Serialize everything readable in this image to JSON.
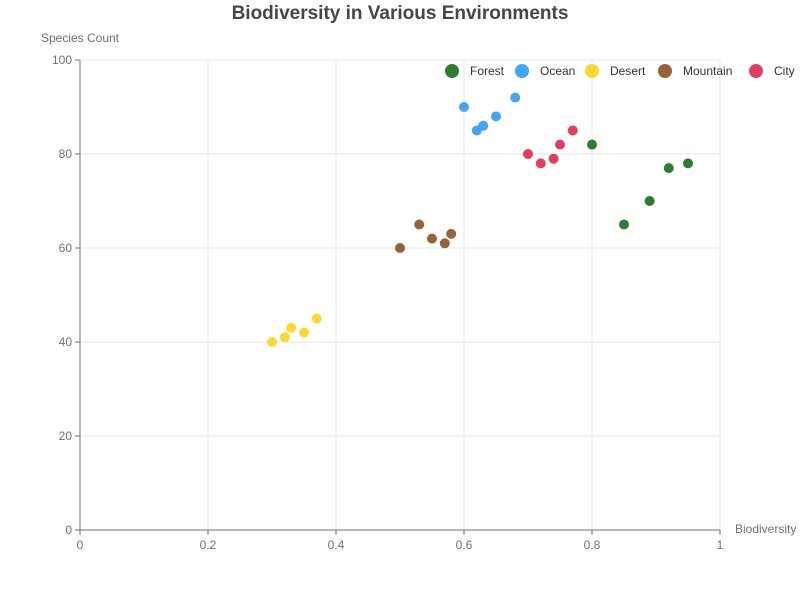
{
  "chart_data": {
    "type": "scatter",
    "title": "Biodiversity in Various Environments",
    "xlabel": "Biodiversity",
    "ylabel": "Species Count",
    "xlim": [
      0,
      1
    ],
    "ylim": [
      0,
      100
    ],
    "x_ticks": [
      0,
      0.2,
      0.4,
      0.6,
      0.8,
      1
    ],
    "y_ticks": [
      0,
      20,
      40,
      60,
      80,
      100
    ],
    "grid": true,
    "legend_position": "top-right",
    "series": [
      {
        "name": "Forest",
        "color": "#2f7d32",
        "points": [
          [
            0.8,
            82
          ],
          [
            0.85,
            65
          ],
          [
            0.89,
            70
          ],
          [
            0.92,
            77
          ],
          [
            0.95,
            78
          ]
        ]
      },
      {
        "name": "Ocean",
        "color": "#42a5f5",
        "points": [
          [
            0.6,
            90
          ],
          [
            0.62,
            85
          ],
          [
            0.63,
            86
          ],
          [
            0.65,
            88
          ],
          [
            0.68,
            92
          ]
        ]
      },
      {
        "name": "Desert",
        "color": "#fdd835",
        "points": [
          [
            0.3,
            40
          ],
          [
            0.32,
            41
          ],
          [
            0.33,
            43
          ],
          [
            0.35,
            42
          ],
          [
            0.37,
            45
          ]
        ]
      },
      {
        "name": "Mountain",
        "color": "#99633a",
        "points": [
          [
            0.5,
            60
          ],
          [
            0.53,
            65
          ],
          [
            0.55,
            62
          ],
          [
            0.57,
            61
          ],
          [
            0.58,
            63
          ]
        ]
      },
      {
        "name": "City",
        "color": "#e0405e",
        "points": [
          [
            0.7,
            80
          ],
          [
            0.72,
            78
          ],
          [
            0.74,
            79
          ],
          [
            0.75,
            82
          ],
          [
            0.77,
            85
          ]
        ]
      }
    ]
  }
}
